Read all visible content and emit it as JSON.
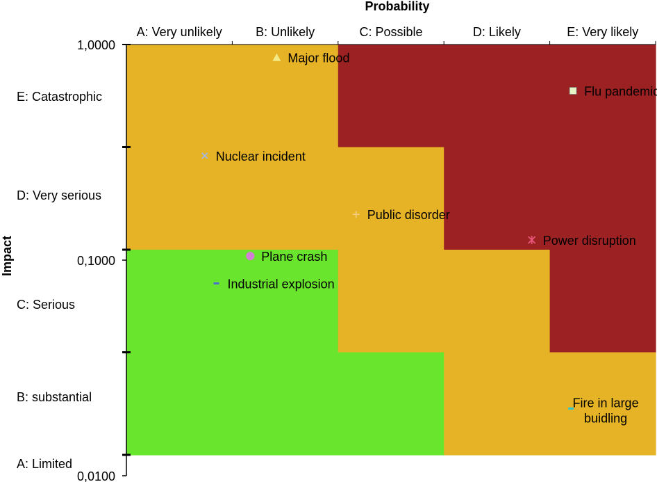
{
  "chart_data": {
    "type": "scatter",
    "title": "Probability",
    "ylabel": "Impact",
    "y_scale": "log",
    "ylim": [
      0.01,
      1.0
    ],
    "y_ticks": [
      "1,0000",
      "0,1000",
      "0,0100"
    ],
    "probability_categories": [
      "A: Very unlikely",
      "B: Unlikely",
      "C: Possible",
      "D: Likely",
      "E: Very likely"
    ],
    "impact_categories": [
      "E: Catastrophic",
      "D: Very serious",
      "C: Serious",
      "B: substantial",
      "A: Limited"
    ],
    "zone_colors": {
      "green": "#6ae52e",
      "amber": "#e6b226",
      "red": "#9b2123"
    },
    "zones": [
      [
        "amber",
        "amber",
        "red",
        "red",
        "red"
      ],
      [
        "amber",
        "amber",
        "amber",
        "red",
        "red"
      ],
      [
        "green",
        "green",
        "amber",
        "amber",
        "red"
      ],
      [
        "green",
        "green",
        "green",
        "amber",
        "amber"
      ]
    ],
    "series": [
      {
        "name": "Major flood",
        "x": 1.42,
        "y": 0.87,
        "marker": "triangle",
        "color": "#f3e985"
      },
      {
        "name": "Flu pandemic",
        "x": 4.22,
        "y": 0.61,
        "marker": "square",
        "color": "#e6f3c4"
      },
      {
        "name": "Nuclear incident",
        "x": 0.74,
        "y": 0.305,
        "marker": "x",
        "color": "#a9b8d6"
      },
      {
        "name": "Public disorder",
        "x": 2.17,
        "y": 0.163,
        "marker": "plus",
        "color": "#f3d28c"
      },
      {
        "name": "Power disruption",
        "x": 3.83,
        "y": 0.124,
        "marker": "star",
        "color": "#e9567a"
      },
      {
        "name": "Plane crash",
        "x": 1.17,
        "y": 0.1045,
        "marker": "circle",
        "color": "#d47fd6"
      },
      {
        "name": "Industrial explosion",
        "x": 0.85,
        "y": 0.078,
        "marker": "dash",
        "color": "#4a70d1"
      },
      {
        "name": "Fire in large buidling",
        "label_lines": [
          "Fire in large",
          "buidling"
        ],
        "x": 4.2,
        "y": 0.0205,
        "marker": "dash",
        "color": "#34c6c9"
      }
    ]
  }
}
